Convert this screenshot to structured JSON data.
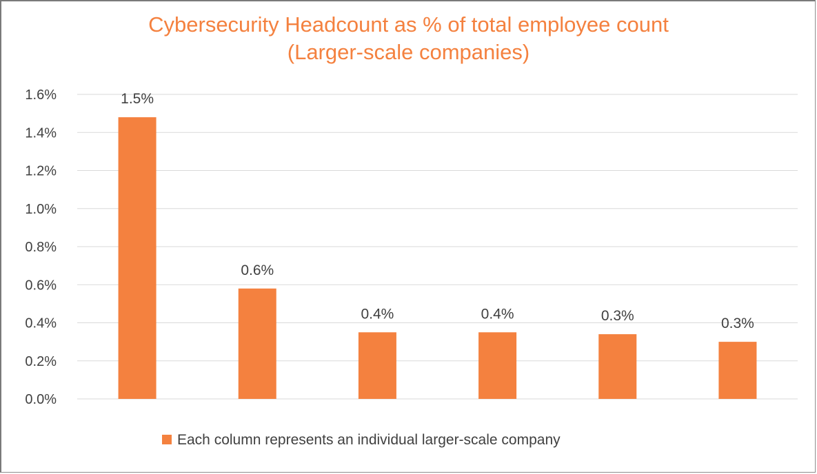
{
  "chart_data": {
    "type": "bar",
    "title": "Cybersecurity Headcount as % of total employee count",
    "subtitle": "(Larger-scale companies)",
    "xlabel": "",
    "ylabel": "",
    "categories": [
      "",
      "",
      "",
      "",
      "",
      ""
    ],
    "values": [
      1.48,
      0.58,
      0.35,
      0.35,
      0.34,
      0.3
    ],
    "data_labels": [
      "1.5%",
      "0.6%",
      "0.4%",
      "0.4%",
      "0.3%",
      "0.3%"
    ],
    "ylim": [
      0,
      1.6
    ],
    "yticks": [
      0,
      0.2,
      0.4,
      0.6,
      0.8,
      1.0,
      1.2,
      1.4,
      1.6
    ],
    "ytick_labels": [
      "0.0%",
      "0.2%",
      "0.4%",
      "0.6%",
      "0.8%",
      "1.0%",
      "1.2%",
      "1.4%",
      "1.6%"
    ],
    "grid": true,
    "legend": {
      "placement": "bottom",
      "entries": [
        "Each column represents an individual larger-scale company"
      ]
    },
    "colors": {
      "bar": "#f4813f",
      "title": "#f4813f",
      "grid": "#d9d9d9"
    }
  }
}
